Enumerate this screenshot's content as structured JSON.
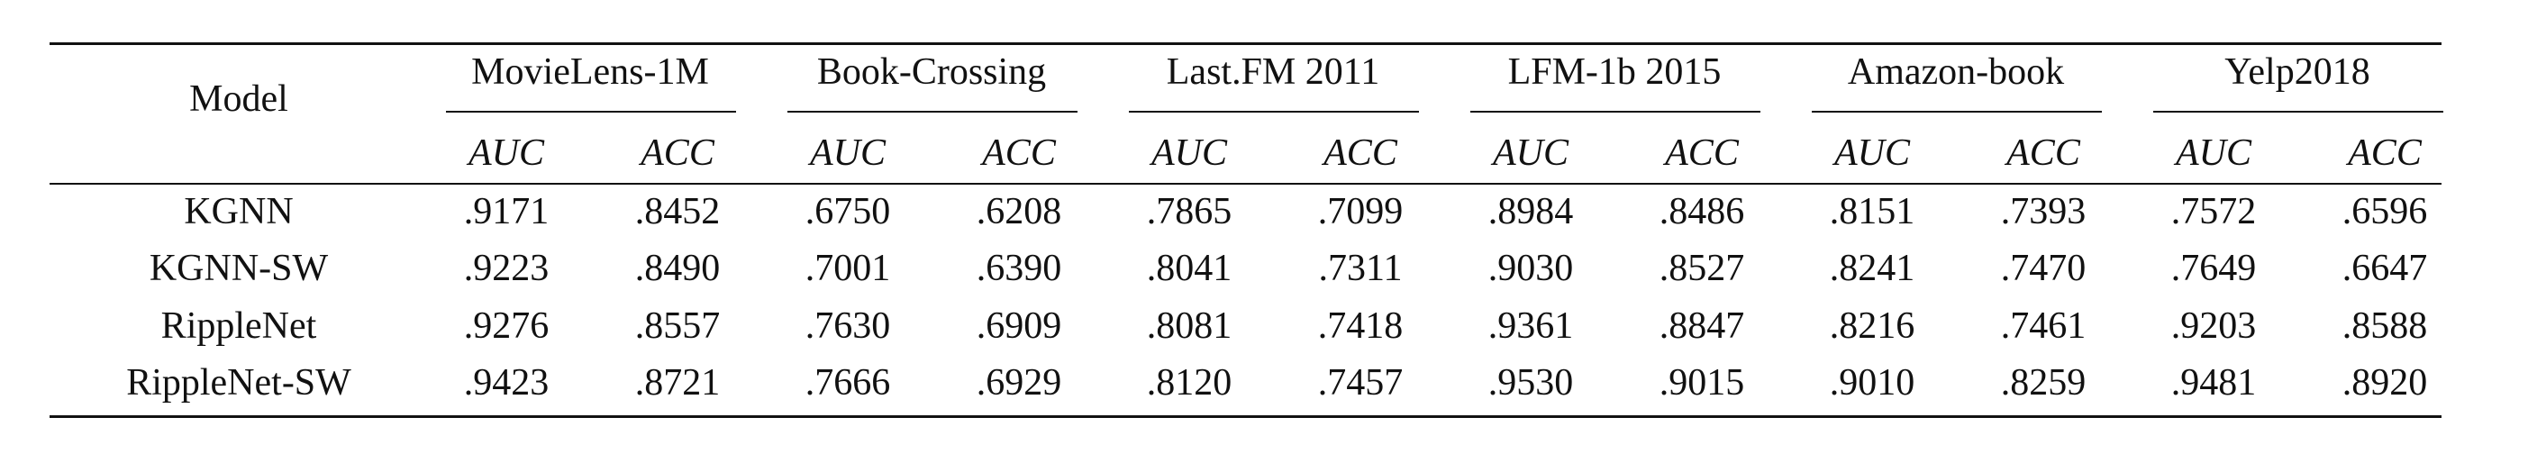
{
  "table": {
    "model_header": "Model",
    "datasets": [
      "MovieLens-1M",
      "Book-Crossing",
      "Last.FM 2011",
      "LFM-1b 2015",
      "Amazon-book",
      "Yelp2018"
    ],
    "metrics": [
      "AUC",
      "ACC"
    ],
    "rows": [
      {
        "model": "KGNN",
        "values": [
          ".9171",
          ".8452",
          ".6750",
          ".6208",
          ".7865",
          ".7099",
          ".8984",
          ".8486",
          ".8151",
          ".7393",
          ".7572",
          ".6596"
        ]
      },
      {
        "model": "KGNN-SW",
        "values": [
          ".9223",
          ".8490",
          ".7001",
          ".6390",
          ".8041",
          ".7311",
          ".9030",
          ".8527",
          ".8241",
          ".7470",
          ".7649",
          ".6647"
        ]
      },
      {
        "model": "RippleNet",
        "values": [
          ".9276",
          ".8557",
          ".7630",
          ".6909",
          ".8081",
          ".7418",
          ".9361",
          ".8847",
          ".8216",
          ".7461",
          ".9203",
          ".8588"
        ]
      },
      {
        "model": "RippleNet-SW",
        "values": [
          ".9423",
          ".8721",
          ".7666",
          ".6929",
          ".8120",
          ".7457",
          ".9530",
          ".9015",
          ".9010",
          ".8259",
          ".9481",
          ".8920"
        ]
      }
    ]
  }
}
